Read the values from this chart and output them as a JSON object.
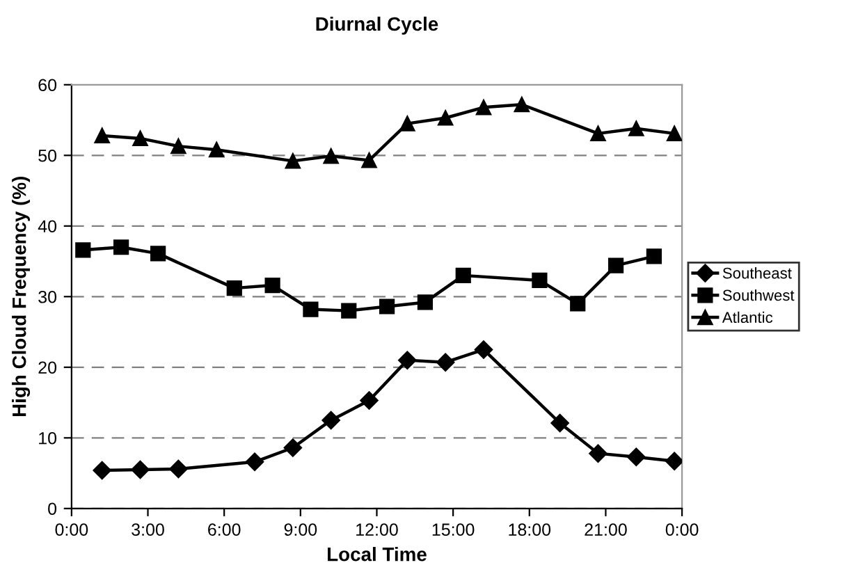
{
  "chart_data": {
    "type": "line",
    "title": "Diurnal Cycle",
    "xlabel": "Local Time",
    "ylabel": "High Cloud Frequency (%)",
    "xlim": [
      0,
      24
    ],
    "xticks": [
      {
        "value": 0,
        "label": "0:00"
      },
      {
        "value": 3,
        "label": "3:00"
      },
      {
        "value": 6,
        "label": "6:00"
      },
      {
        "value": 9,
        "label": "9:00"
      },
      {
        "value": 12,
        "label": "12:00"
      },
      {
        "value": 15,
        "label": "15:00"
      },
      {
        "value": 18,
        "label": "18:00"
      },
      {
        "value": 21,
        "label": "21:00"
      },
      {
        "value": 24,
        "label": "0:00"
      }
    ],
    "ylim": [
      0,
      60
    ],
    "yticks": [
      0,
      10,
      20,
      30,
      40,
      50,
      60
    ],
    "grid": "y",
    "legend": "right",
    "line_style": "solid",
    "series": [
      {
        "name": "Southeast",
        "color": "#000000",
        "marker": "diamond",
        "x": [
          1.2,
          2.7,
          4.2,
          7.2,
          8.7,
          10.2,
          11.7,
          13.2,
          14.7,
          16.2,
          19.2,
          20.7,
          22.2,
          23.7
        ],
        "values": [
          5.4,
          5.5,
          5.6,
          6.6,
          8.6,
          12.5,
          15.3,
          21.0,
          20.7,
          22.5,
          12.1,
          7.8,
          7.3,
          6.7
        ]
      },
      {
        "name": "Southwest",
        "color": "#000000",
        "marker": "square",
        "x": [
          0.45,
          1.95,
          3.4,
          6.4,
          7.9,
          9.4,
          10.9,
          12.4,
          13.9,
          15.4,
          18.4,
          19.9,
          21.4,
          22.9
        ],
        "values": [
          36.6,
          37.0,
          36.1,
          31.2,
          31.6,
          28.2,
          28.0,
          28.6,
          29.2,
          33.0,
          32.3,
          29.0,
          34.4,
          35.7
        ]
      },
      {
        "name": "Atlantic",
        "color": "#000000",
        "marker": "triangle",
        "x": [
          1.2,
          2.7,
          4.2,
          5.7,
          8.7,
          10.2,
          11.7,
          13.2,
          14.7,
          16.2,
          17.7,
          20.7,
          22.2,
          23.7
        ],
        "values": [
          52.8,
          52.4,
          51.3,
          50.8,
          49.2,
          49.9,
          49.3,
          54.5,
          55.3,
          56.8,
          57.2,
          53.1,
          53.8,
          53.1
        ]
      }
    ]
  }
}
